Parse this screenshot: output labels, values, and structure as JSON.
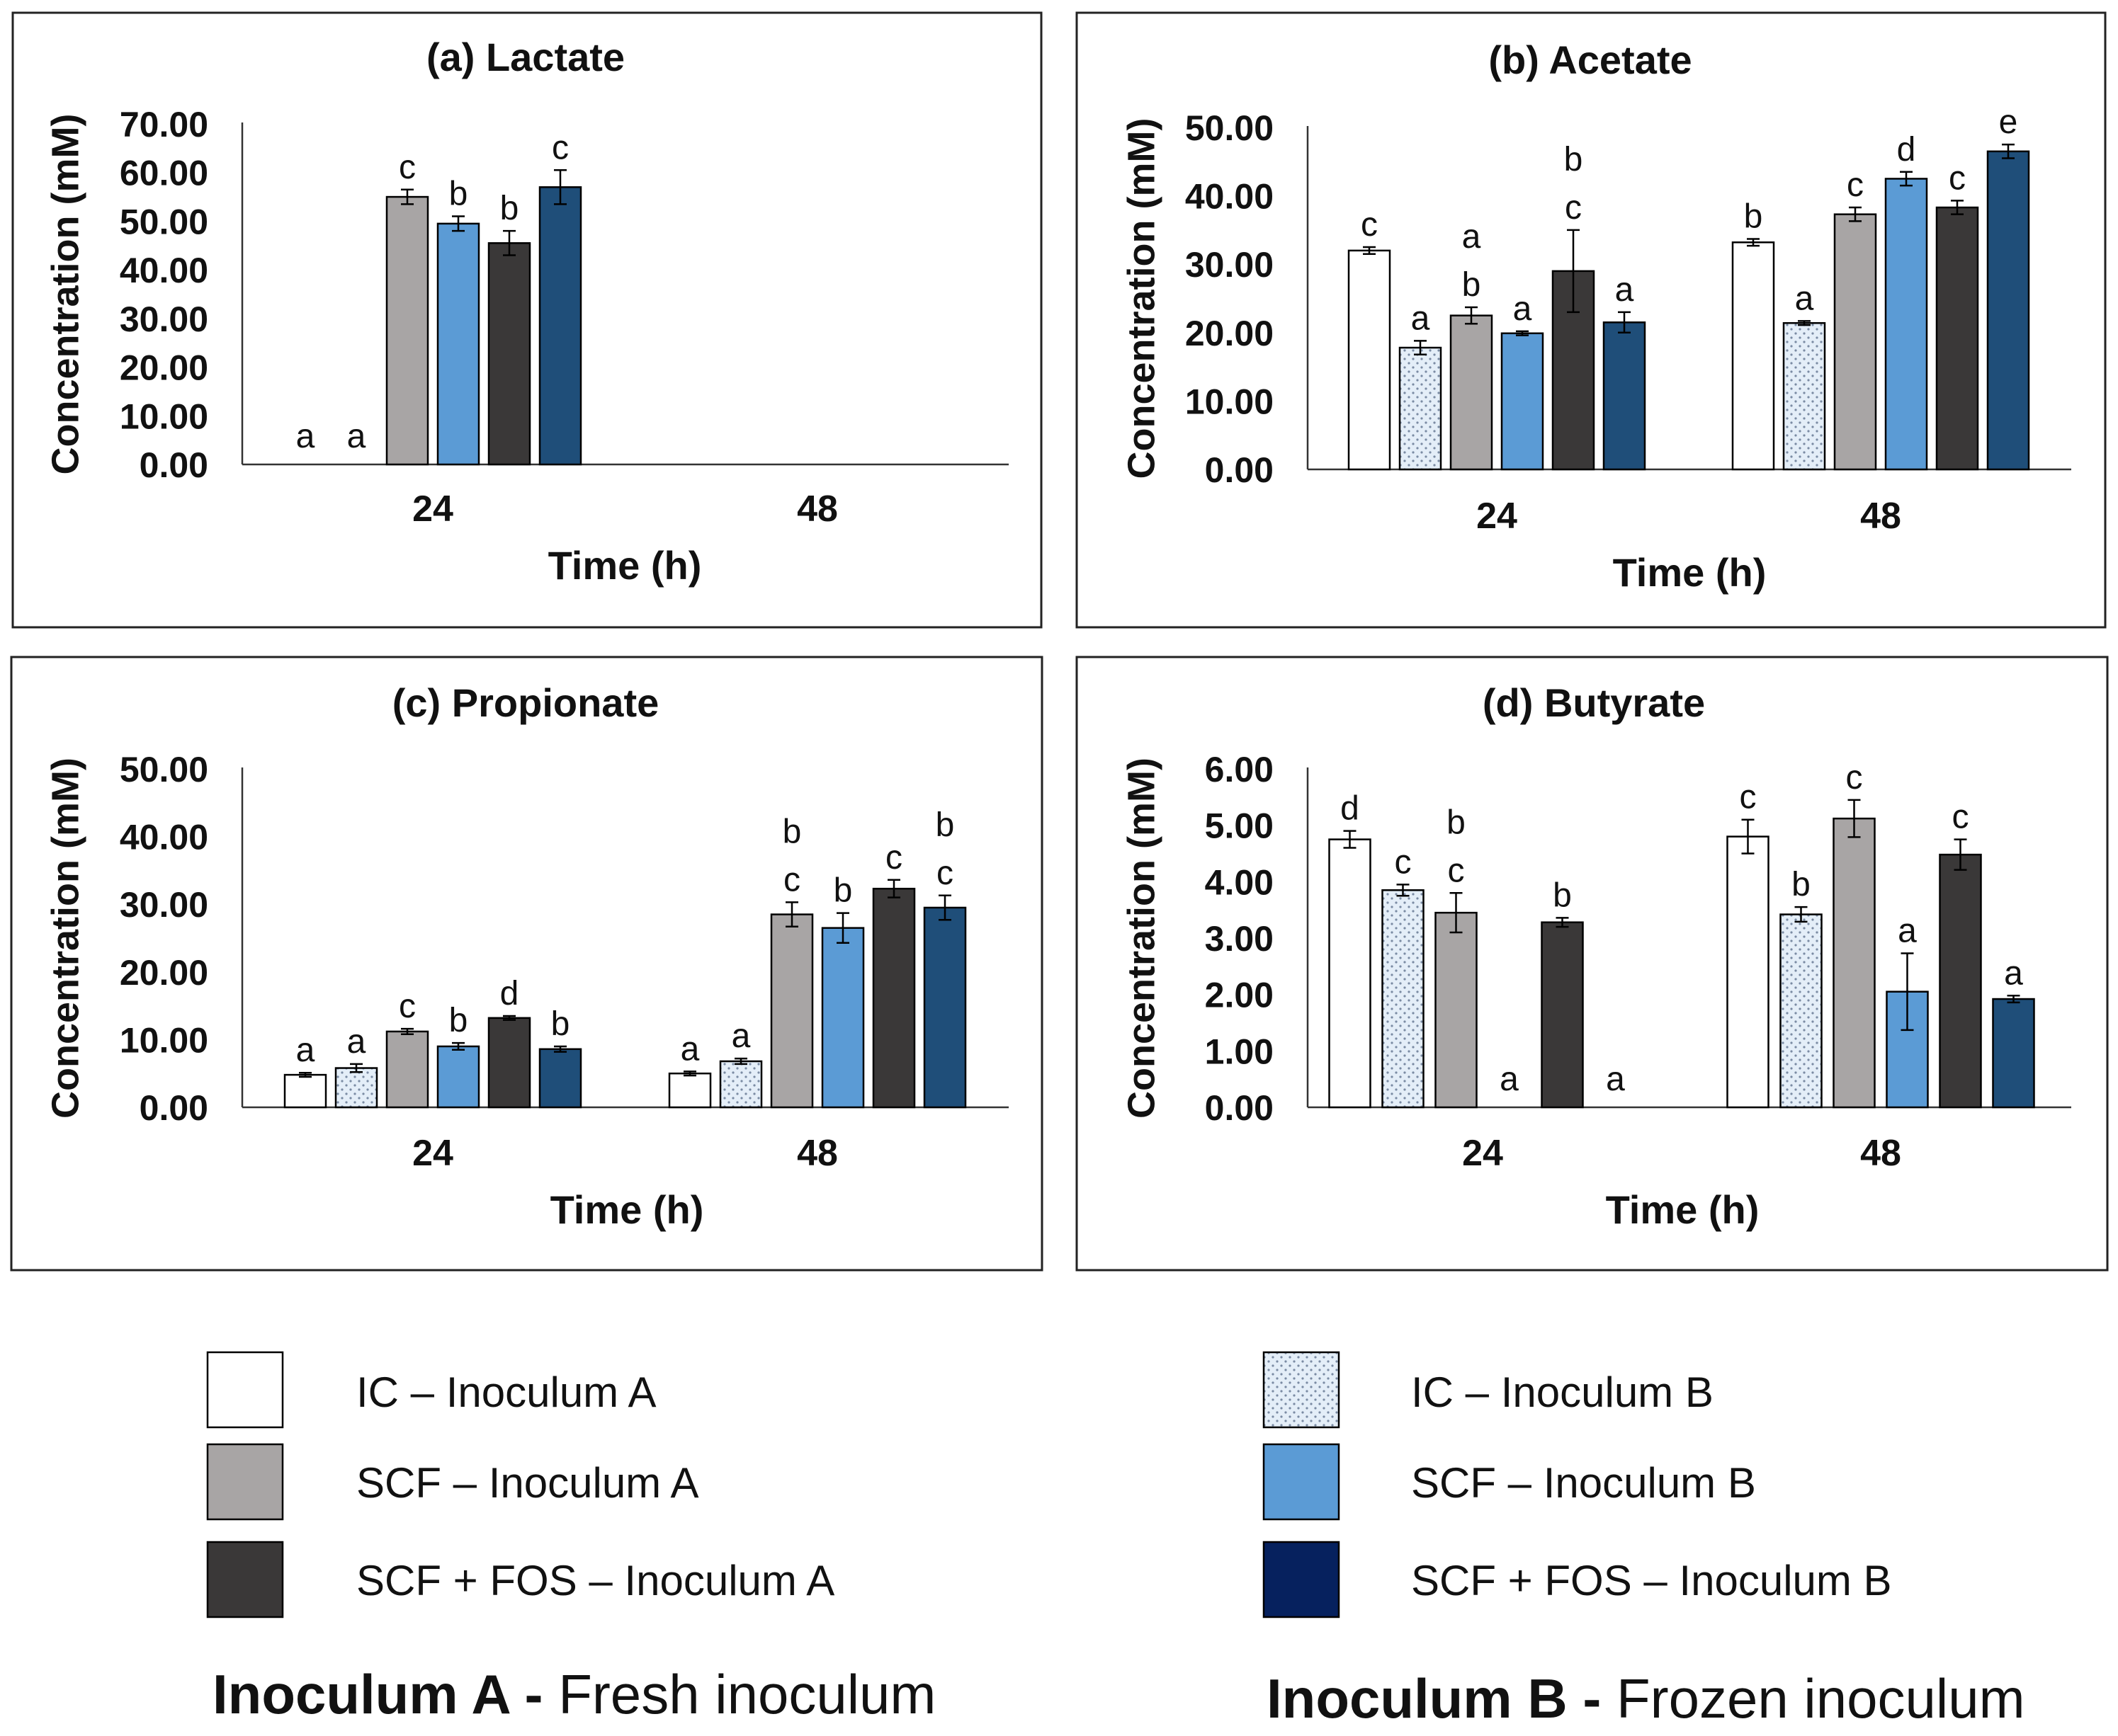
{
  "colors": {
    "ic_a": "#ffffff",
    "ic_b": "#e4eef8",
    "scf_a": "#a8a5a5",
    "scf_b": "#5b9bd5",
    "fos_a": "#3a3838",
    "fos_b": "#1f4e79",
    "legend_fos_b": "#06215e",
    "stroke": "#000000",
    "dots": "#7a8ba3"
  },
  "legend": {
    "items": [
      {
        "key": "ic_a",
        "label": "IC – Inoculum  A"
      },
      {
        "key": "scf_a",
        "label": "SCF – Inoculum  A"
      },
      {
        "key": "fos_a",
        "label": "SCF + FOS – Inoculum  A"
      },
      {
        "key": "ic_b",
        "label": "IC – Inoculum  B"
      },
      {
        "key": "scf_b",
        "label": "SCF – Inoculum  B"
      },
      {
        "key": "fos_b",
        "label": "SCF + FOS – Inoculum  B"
      }
    ]
  },
  "footer": {
    "a_bold": "Inoculum A - ",
    "a_rest": "Fresh inoculum",
    "b_bold": "Inoculum B - ",
    "b_rest": "Frozen inoculum"
  },
  "chart_data": [
    {
      "type": "bar",
      "title": "(a) Lactate",
      "xlabel": "Time (h)",
      "ylabel": "Concentration (mM)",
      "ylim": [
        0,
        70
      ],
      "yticks": [
        "0.00",
        "10.00",
        "20.00",
        "30.00",
        "40.00",
        "50.00",
        "60.00",
        "70.00"
      ],
      "categories": [
        "24",
        "48"
      ],
      "series": [
        {
          "name": "IC – Inoculum A",
          "key": "ic_a",
          "values": [
            0,
            null
          ],
          "errors": [
            0,
            null
          ],
          "letters": [
            [
              "a"
            ],
            []
          ]
        },
        {
          "name": "IC – Inoculum B",
          "key": "ic_b",
          "values": [
            0,
            null
          ],
          "errors": [
            0,
            null
          ],
          "letters": [
            [
              "a"
            ],
            []
          ]
        },
        {
          "name": "SCF – Inoculum A",
          "key": "scf_a",
          "values": [
            55.0,
            null
          ],
          "errors": [
            1.5,
            null
          ],
          "letters": [
            [
              "c"
            ],
            []
          ]
        },
        {
          "name": "SCF – Inoculum B",
          "key": "scf_b",
          "values": [
            49.5,
            null
          ],
          "errors": [
            1.5,
            null
          ],
          "letters": [
            [
              "b"
            ],
            []
          ]
        },
        {
          "name": "SCF + FOS – Inoculum A",
          "key": "fos_a",
          "values": [
            45.5,
            null
          ],
          "errors": [
            2.5,
            null
          ],
          "letters": [
            [
              "b"
            ],
            []
          ]
        },
        {
          "name": "SCF + FOS – Inoculum B",
          "key": "fos_b",
          "values": [
            57.0,
            null
          ],
          "errors": [
            3.5,
            null
          ],
          "letters": [
            [
              "c"
            ],
            []
          ]
        }
      ]
    },
    {
      "type": "bar",
      "title": "(b) Acetate",
      "xlabel": "Time (h)",
      "ylabel": "Concentration (mM)",
      "ylim": [
        0,
        50
      ],
      "yticks": [
        "0.00",
        "10.00",
        "20.00",
        "30.00",
        "40.00",
        "50.00"
      ],
      "categories": [
        "24",
        "48"
      ],
      "series": [
        {
          "name": "IC – Inoculum A",
          "key": "ic_a",
          "values": [
            32.0,
            33.2
          ],
          "errors": [
            0.5,
            0.5
          ],
          "letters": [
            [
              "c"
            ],
            [
              "b"
            ]
          ]
        },
        {
          "name": "IC – Inoculum B",
          "key": "ic_b",
          "values": [
            17.8,
            21.4
          ],
          "errors": [
            1.0,
            0.3
          ],
          "letters": [
            [
              "a"
            ],
            [
              "a"
            ]
          ]
        },
        {
          "name": "SCF – Inoculum A",
          "key": "scf_a",
          "values": [
            22.5,
            37.3
          ],
          "errors": [
            1.2,
            1.0
          ],
          "letters": [
            [
              "a",
              "b"
            ],
            [
              "c"
            ]
          ]
        },
        {
          "name": "SCF – Inoculum B",
          "key": "scf_b",
          "values": [
            19.9,
            42.5
          ],
          "errors": [
            0.3,
            1.0
          ],
          "letters": [
            [
              "a"
            ],
            [
              "d"
            ]
          ]
        },
        {
          "name": "SCF + FOS – Inoculum A",
          "key": "fos_a",
          "values": [
            29.0,
            38.3
          ],
          "errors": [
            6.0,
            1.0
          ],
          "letters": [
            [
              "b",
              "c"
            ],
            [
              "c"
            ]
          ]
        },
        {
          "name": "SCF + FOS – Inoculum B",
          "key": "fos_b",
          "values": [
            21.5,
            46.5
          ],
          "errors": [
            1.5,
            1.0
          ],
          "letters": [
            [
              "a"
            ],
            [
              "e"
            ]
          ]
        }
      ]
    },
    {
      "type": "bar",
      "title": "(c) Propionate",
      "xlabel": "Time (h)",
      "ylabel": "Concentration (mM)",
      "ylim": [
        0,
        50
      ],
      "yticks": [
        "0.00",
        "10.00",
        "20.00",
        "30.00",
        "40.00",
        "50.00"
      ],
      "categories": [
        "24",
        "48"
      ],
      "series": [
        {
          "name": "IC – Inoculum A",
          "key": "ic_a",
          "values": [
            4.8,
            5.0
          ],
          "errors": [
            0.3,
            0.3
          ],
          "letters": [
            [
              "a"
            ],
            [
              "a"
            ]
          ]
        },
        {
          "name": "IC – Inoculum B",
          "key": "ic_b",
          "values": [
            5.8,
            6.8
          ],
          "errors": [
            0.6,
            0.4
          ],
          "letters": [
            [
              "a"
            ],
            [
              "a"
            ]
          ]
        },
        {
          "name": "SCF – Inoculum A",
          "key": "scf_a",
          "values": [
            11.2,
            28.5
          ],
          "errors": [
            0.4,
            1.8
          ],
          "letters": [
            [
              "c"
            ],
            [
              "b",
              "c"
            ]
          ]
        },
        {
          "name": "SCF – Inoculum B",
          "key": "scf_b",
          "values": [
            9.0,
            26.5
          ],
          "errors": [
            0.5,
            2.2
          ],
          "letters": [
            [
              "b"
            ],
            [
              "b"
            ]
          ]
        },
        {
          "name": "SCF + FOS – Inoculum A",
          "key": "fos_a",
          "values": [
            13.2,
            32.3
          ],
          "errors": [
            0.3,
            1.3
          ],
          "letters": [
            [
              "d"
            ],
            [
              "c"
            ]
          ]
        },
        {
          "name": "SCF + FOS – Inoculum B",
          "key": "fos_b",
          "values": [
            8.6,
            29.5
          ],
          "errors": [
            0.4,
            1.8
          ],
          "letters": [
            [
              "b"
            ],
            [
              "b",
              "c"
            ]
          ]
        }
      ]
    },
    {
      "type": "bar",
      "title": "(d) Butyrate",
      "xlabel": "Time (h)",
      "ylabel": "Concentration (mM)",
      "ylim": [
        0,
        6
      ],
      "yticks": [
        "0.00",
        "1.00",
        "2.00",
        "3.00",
        "4.00",
        "5.00",
        "6.00"
      ],
      "categories": [
        "24",
        "48"
      ],
      "series": [
        {
          "name": "IC – Inoculum A",
          "key": "ic_a",
          "values": [
            4.75,
            4.8
          ],
          "errors": [
            0.15,
            0.3
          ],
          "letters": [
            [
              "d"
            ],
            [
              "c"
            ]
          ]
        },
        {
          "name": "IC – Inoculum B",
          "key": "ic_b",
          "values": [
            3.85,
            3.42
          ],
          "errors": [
            0.1,
            0.13
          ],
          "letters": [
            [
              "c"
            ],
            [
              "b"
            ]
          ]
        },
        {
          "name": "SCF – Inoculum A",
          "key": "scf_a",
          "values": [
            3.45,
            5.12
          ],
          "errors": [
            0.35,
            0.33
          ],
          "letters": [
            [
              "b",
              "c"
            ],
            [
              "c"
            ]
          ]
        },
        {
          "name": "SCF – Inoculum B",
          "key": "scf_b",
          "values": [
            0,
            2.05
          ],
          "errors": [
            0,
            0.68
          ],
          "letters": [
            [
              "a"
            ],
            [
              "a"
            ]
          ]
        },
        {
          "name": "SCF + FOS – Inoculum A",
          "key": "fos_a",
          "values": [
            3.28,
            4.48
          ],
          "errors": [
            0.08,
            0.27
          ],
          "letters": [
            [
              "b"
            ],
            [
              "c"
            ]
          ]
        },
        {
          "name": "SCF + FOS – Inoculum B",
          "key": "fos_b",
          "values": [
            0,
            1.92
          ],
          "errors": [
            0,
            0.06
          ],
          "letters": [
            [
              "a"
            ],
            [
              "a"
            ]
          ]
        }
      ]
    }
  ]
}
